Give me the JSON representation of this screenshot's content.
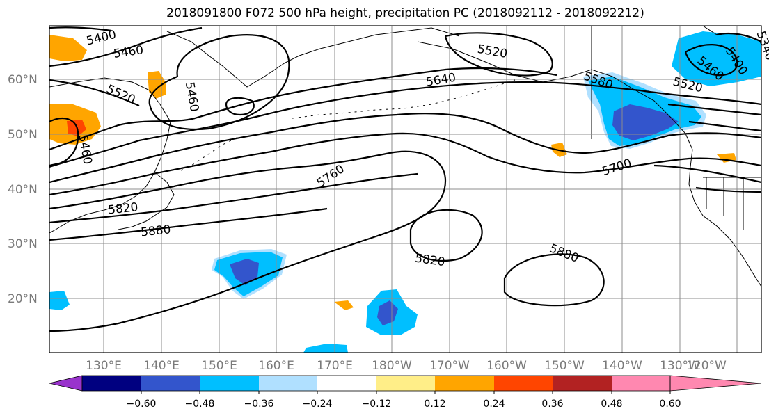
{
  "title": "2018091800 F072 500 hPa height, precipitation PC (2018092112 - 2018092212)",
  "lat_labels": [
    "60°N",
    "50°N",
    "40°N",
    "30°N",
    "20°N"
  ],
  "lon_labels": [
    "130°E",
    "140°E",
    "150°E",
    "160°E",
    "170°E",
    "180°W",
    "170°W",
    "160°W",
    "150°W",
    "140°W",
    "130°W",
    "120°W"
  ],
  "contour_labels": [
    "5400",
    "5460",
    "5520",
    "5460",
    "5460",
    "5520",
    "5640",
    "5580",
    "5520",
    "5460",
    "5400",
    "5340",
    "5760",
    "5700",
    "5820",
    "5880",
    "5820",
    "5880"
  ],
  "colorbar": {
    "colors": [
      "#9933cc",
      "#000080",
      "#3355cc",
      "#00bfff",
      "#b0e0ff",
      "#ffffff",
      "#ffee88",
      "#ffa500",
      "#ff4500",
      "#b22222",
      "#ff88b0"
    ],
    "tick_labels": [
      "−0.60",
      "−0.48",
      "−0.36",
      "−0.24",
      "−0.12",
      "0.12",
      "0.24",
      "0.36",
      "0.48",
      "0.60"
    ]
  }
}
